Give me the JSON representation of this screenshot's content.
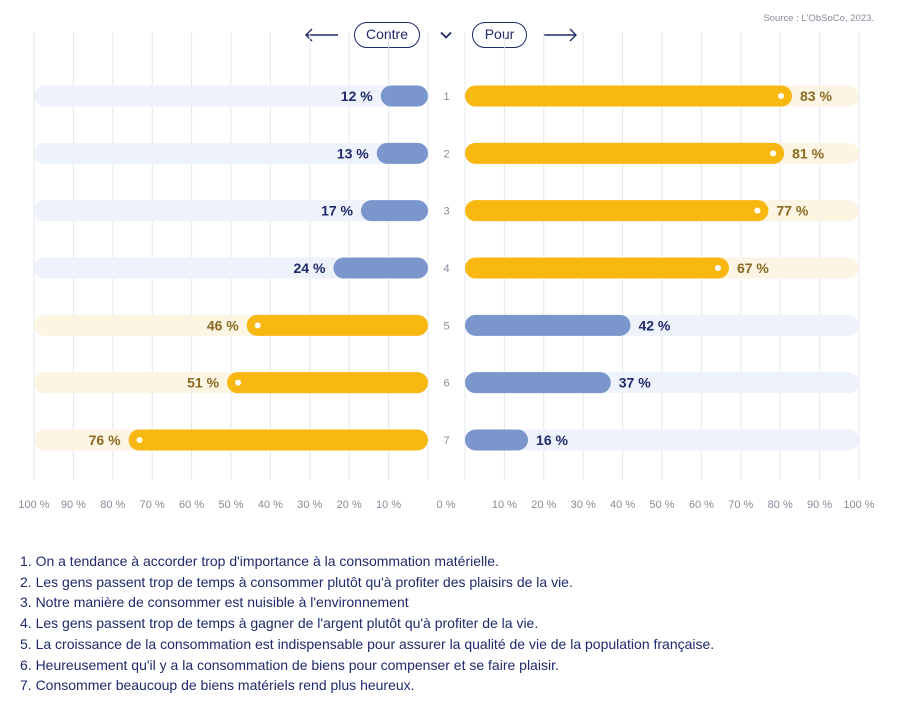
{
  "source": "Source : L'ObSoCo, 2023.",
  "header": {
    "contre_label": "Contre",
    "pour_label": "Pour"
  },
  "colors": {
    "yellow": "#f9b712",
    "blue": "#7b96cd",
    "track_yellow": "#fdf5e3",
    "track_blue": "#eef2fa",
    "navy": "#1f2a6b",
    "gold_text": "#8a6a22",
    "grid": "#e4e7ef",
    "tick": "#8a8a9a"
  },
  "chart_data": {
    "type": "bar",
    "orientation": "horizontal-diverging",
    "categories": [
      "1",
      "2",
      "3",
      "4",
      "5",
      "6",
      "7"
    ],
    "series": [
      {
        "name": "Contre",
        "values": [
          12,
          13,
          17,
          24,
          46,
          51,
          76
        ]
      },
      {
        "name": "Pour",
        "values": [
          83,
          81,
          77,
          67,
          42,
          37,
          16
        ]
      }
    ],
    "xlim": [
      0,
      100
    ],
    "x_ticks": [
      "100 %",
      "90 %",
      "80 %",
      "70 %",
      "60 %",
      "50 %",
      "40 %",
      "30 %",
      "20 %",
      "10 %",
      "0 %",
      "10 %",
      "20 %",
      "30 %",
      "40 %",
      "50 %",
      "60 %",
      "70 %",
      "80 %",
      "90 %",
      "100 %"
    ],
    "grid": true
  },
  "legend_items": [
    "1. On a tendance à accorder trop d'importance à la consommation matérielle.",
    "2. Les gens passent trop de temps à consommer plutôt qu'à profiter des plaisirs de la vie.",
    "3. Notre manière de consommer est nuisible à l'environnement",
    "4. Les gens passent trop de temps à gagner de l'argent plutôt qu'à profiter de la vie.",
    "5. La croissance de la consommation est indispensable pour assurer la qualité de vie de la population française.",
    "6. Heureusement qu'il y a la consommation de biens pour compenser et se faire plaisir.",
    "7. Consommer beaucoup de biens matériels rend plus heureux."
  ]
}
